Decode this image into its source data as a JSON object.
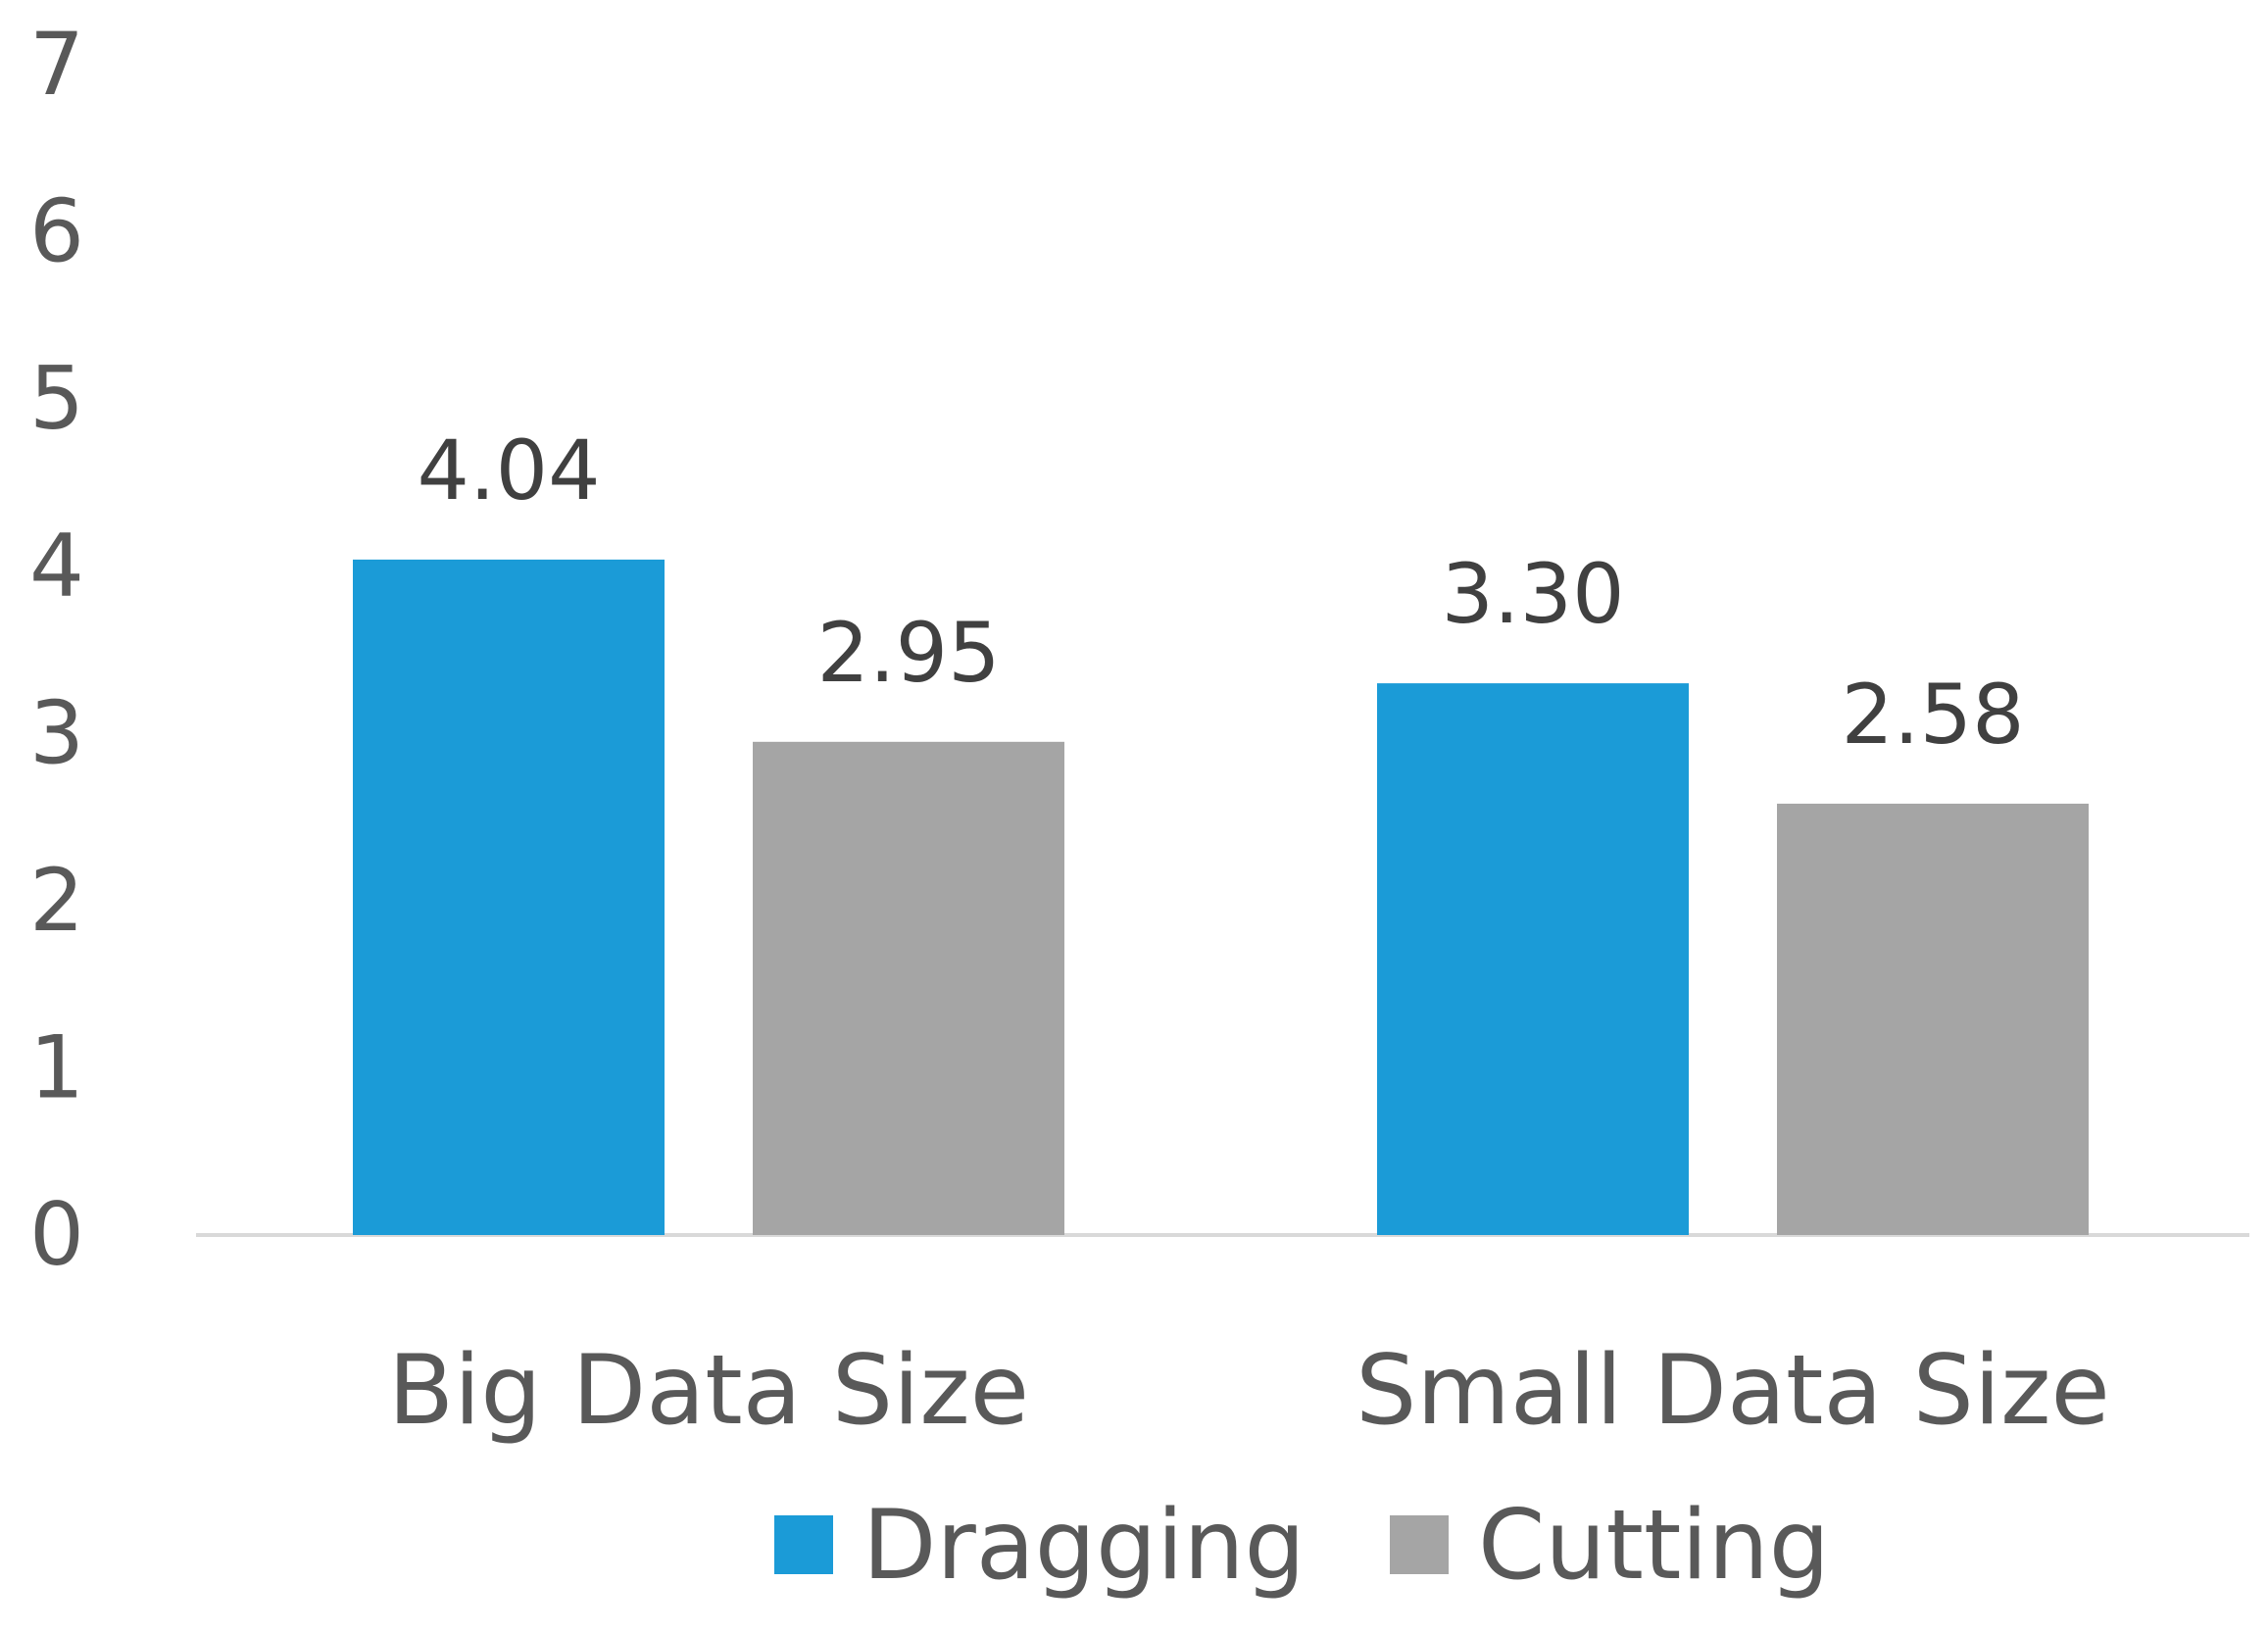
{
  "chart_data": {
    "type": "bar",
    "categories": [
      "Big Data Size",
      "Small Data Size"
    ],
    "series": [
      {
        "name": "Dragging",
        "values": [
          4.04,
          3.3
        ],
        "labels": [
          "4.04",
          "3.30"
        ],
        "color": "#1B9BD7"
      },
      {
        "name": "Cutting",
        "values": [
          2.95,
          2.58
        ],
        "labels": [
          "2.95",
          "2.58"
        ],
        "color": "#A5A5A5"
      }
    ],
    "ylim": [
      0,
      7
    ],
    "yticks": [
      "0",
      "1",
      "2",
      "3",
      "4",
      "5",
      "6",
      "7"
    ],
    "grid": false,
    "legend": "bottom",
    "axis_color": "#D9D9D9"
  }
}
